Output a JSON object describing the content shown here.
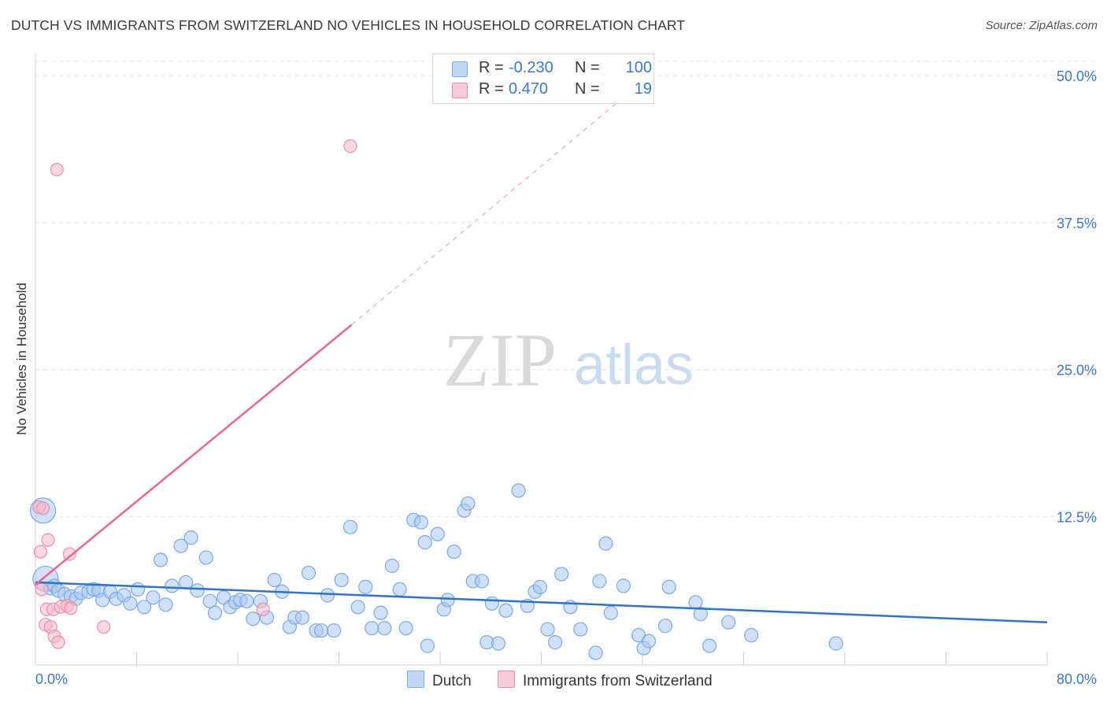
{
  "header": {
    "title": "DUTCH VS IMMIGRANTS FROM SWITZERLAND NO VEHICLES IN HOUSEHOLD CORRELATION CHART",
    "source": "Source: ZipAtlas.com"
  },
  "watermark": {
    "zip": "ZIP",
    "atlas": "atlas"
  },
  "legend": {
    "rows": [
      {
        "r_label": "R =",
        "r_value": "-0.230",
        "n_label": "N =",
        "n_value": "100",
        "color": "#a9c8f0"
      },
      {
        "r_label": "R =",
        "r_value": "0.470",
        "n_label": "N =",
        "n_value": "19",
        "color": "#f5b8cb"
      }
    ]
  },
  "bottom_legend": [
    {
      "label": "Dutch",
      "color": "#a9c8f0"
    },
    {
      "label": "Immigrants from Switzerland",
      "color": "#f5b8cb"
    }
  ],
  "colors": {
    "dutch_fill": "#a9c8f0",
    "dutch_stroke": "#7aaae6",
    "dutch_line": "#2f72c9",
    "swiss_fill": "#f5b8cb",
    "swiss_stroke": "#ec8fab",
    "swiss_line": "#e8668f",
    "tick_text": "#3d78c8",
    "grid": "#e6e6e6"
  },
  "chart_data": {
    "type": "scatter",
    "title": "DUTCH VS IMMIGRANTS FROM SWITZERLAND NO VEHICLES IN HOUSEHOLD CORRELATION CHART",
    "ylabel": "No Vehicles in Household",
    "xlabel": "",
    "xlim": [
      0,
      80
    ],
    "ylim": [
      0,
      50
    ],
    "x_tick_labels": [
      "0.0%",
      "80.0%"
    ],
    "y_ticks": [
      {
        "value": 12.5,
        "label": "12.5%"
      },
      {
        "value": 25.0,
        "label": "25.0%"
      },
      {
        "value": 37.5,
        "label": "37.5%"
      },
      {
        "value": 50.0,
        "label": "50.0%"
      }
    ],
    "grid": true,
    "legend_position": "top-center",
    "series": [
      {
        "name": "Dutch",
        "trendline": {
          "x0": 0,
          "y0": 6.9,
          "x1": 80,
          "y1": 3.5
        },
        "points": [
          [
            0.6,
            13.0
          ],
          [
            0.8,
            7.2
          ],
          [
            1.2,
            6.4
          ],
          [
            1.5,
            6.6
          ],
          [
            1.8,
            6.2
          ],
          [
            2.3,
            5.9
          ],
          [
            2.8,
            5.7
          ],
          [
            3.2,
            5.5
          ],
          [
            3.6,
            6.0
          ],
          [
            4.2,
            6.1
          ],
          [
            4.6,
            6.3
          ],
          [
            5.0,
            6.2
          ],
          [
            5.3,
            5.4
          ],
          [
            5.9,
            6.1
          ],
          [
            6.4,
            5.5
          ],
          [
            7.0,
            5.8
          ],
          [
            7.5,
            5.1
          ],
          [
            8.1,
            6.3
          ],
          [
            8.6,
            4.8
          ],
          [
            9.3,
            5.6
          ],
          [
            9.9,
            8.8
          ],
          [
            10.3,
            5.0
          ],
          [
            10.8,
            6.6
          ],
          [
            11.5,
            10.0
          ],
          [
            11.9,
            6.9
          ],
          [
            12.3,
            10.7
          ],
          [
            12.8,
            6.2
          ],
          [
            13.5,
            9.0
          ],
          [
            13.8,
            5.3
          ],
          [
            14.2,
            4.3
          ],
          [
            14.9,
            5.6
          ],
          [
            15.4,
            4.8
          ],
          [
            15.8,
            5.2
          ],
          [
            16.2,
            5.4
          ],
          [
            16.7,
            5.3
          ],
          [
            17.2,
            3.8
          ],
          [
            17.8,
            5.3
          ],
          [
            18.3,
            3.9
          ],
          [
            18.9,
            7.1
          ],
          [
            19.5,
            6.1
          ],
          [
            20.1,
            3.1
          ],
          [
            20.5,
            3.9
          ],
          [
            21.1,
            3.9
          ],
          [
            21.6,
            7.7
          ],
          [
            22.2,
            2.8
          ],
          [
            22.6,
            2.8
          ],
          [
            23.1,
            5.8
          ],
          [
            23.6,
            2.8
          ],
          [
            24.2,
            7.1
          ],
          [
            24.9,
            11.6
          ],
          [
            25.5,
            4.8
          ],
          [
            26.1,
            6.5
          ],
          [
            26.6,
            3.0
          ],
          [
            27.3,
            4.3
          ],
          [
            27.6,
            3.0
          ],
          [
            28.2,
            8.3
          ],
          [
            28.8,
            6.3
          ],
          [
            29.3,
            3.0
          ],
          [
            29.9,
            12.2
          ],
          [
            30.5,
            12.0
          ],
          [
            30.8,
            10.3
          ],
          [
            31.0,
            1.5
          ],
          [
            31.8,
            11.0
          ],
          [
            32.3,
            4.6
          ],
          [
            32.6,
            5.4
          ],
          [
            33.1,
            9.5
          ],
          [
            33.9,
            13.0
          ],
          [
            34.2,
            13.6
          ],
          [
            34.6,
            7.0
          ],
          [
            35.3,
            7.0
          ],
          [
            35.7,
            1.8
          ],
          [
            36.1,
            5.1
          ],
          [
            36.6,
            1.7
          ],
          [
            37.2,
            4.5
          ],
          [
            38.2,
            14.7
          ],
          [
            38.9,
            4.9
          ],
          [
            39.5,
            6.1
          ],
          [
            39.9,
            6.5
          ],
          [
            40.5,
            2.9
          ],
          [
            41.1,
            1.8
          ],
          [
            41.6,
            7.6
          ],
          [
            42.3,
            4.8
          ],
          [
            43.1,
            2.9
          ],
          [
            44.3,
            0.9
          ],
          [
            44.6,
            7.0
          ],
          [
            45.1,
            10.2
          ],
          [
            45.5,
            4.3
          ],
          [
            46.5,
            6.6
          ],
          [
            47.7,
            2.4
          ],
          [
            48.1,
            1.3
          ],
          [
            48.5,
            1.9
          ],
          [
            49.8,
            3.2
          ],
          [
            50.1,
            6.5
          ],
          [
            52.2,
            5.2
          ],
          [
            52.6,
            4.2
          ],
          [
            53.3,
            1.5
          ],
          [
            54.8,
            3.5
          ],
          [
            56.6,
            2.4
          ],
          [
            63.3,
            1.7
          ]
        ],
        "large_points": [
          [
            0.6,
            13.0,
            "large"
          ],
          [
            0.8,
            7.2,
            "large"
          ]
        ]
      },
      {
        "name": "Immigrants from Switzerland",
        "trendline": {
          "x0": 0,
          "y0": 6.7,
          "x1": 25,
          "y1": 28.8,
          "dashed_to": [
            48,
            49.5
          ]
        },
        "points": [
          [
            0.3,
            13.3
          ],
          [
            0.4,
            9.5
          ],
          [
            0.5,
            6.3
          ],
          [
            0.6,
            13.2
          ],
          [
            0.8,
            3.3
          ],
          [
            0.9,
            4.6
          ],
          [
            1.0,
            10.5
          ],
          [
            1.2,
            3.1
          ],
          [
            1.4,
            4.6
          ],
          [
            1.5,
            2.3
          ],
          [
            1.7,
            42.0
          ],
          [
            1.8,
            1.8
          ],
          [
            2.0,
            4.8
          ],
          [
            2.5,
            4.9
          ],
          [
            2.7,
            9.3
          ],
          [
            2.8,
            4.7
          ],
          [
            5.4,
            3.1
          ],
          [
            18.0,
            4.6
          ],
          [
            24.9,
            44.0
          ]
        ]
      }
    ]
  }
}
